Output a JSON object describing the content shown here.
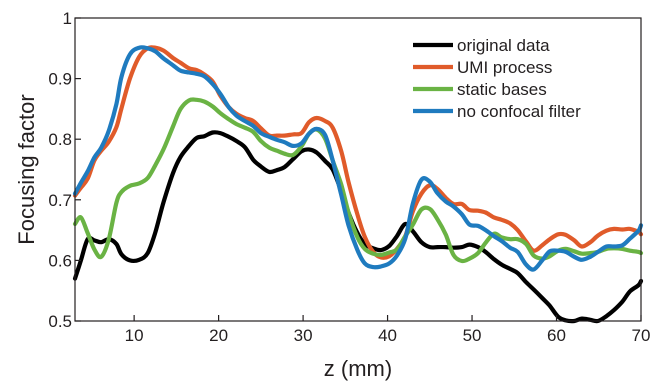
{
  "chart_data": {
    "type": "line",
    "title": "",
    "xlabel": "z (mm)",
    "ylabel": "Focusing factor",
    "xlim": [
      3,
      70
    ],
    "ylim": [
      0.5,
      1.0
    ],
    "xticks": [
      10,
      20,
      30,
      40,
      50,
      60,
      70
    ],
    "xtick_labels": [
      "10",
      "20",
      "30",
      "40",
      "50",
      "60",
      "70"
    ],
    "yticks": [
      0.5,
      0.6,
      0.7,
      0.8,
      0.9,
      1.0
    ],
    "ytick_labels": [
      "0.5",
      "0.6",
      "0.7",
      "0.8",
      "0.9",
      "1"
    ],
    "grid": false,
    "legend_position": "top-right",
    "series": [
      {
        "name": "original data",
        "color": "#000000",
        "x": [
          3,
          3.7,
          4.5,
          5.3,
          6.1,
          7,
          7.9,
          8.5,
          9.5,
          10.6,
          11.6,
          12.5,
          13.5,
          14.6,
          15.5,
          16.5,
          17.4,
          18.3,
          19.3,
          20.2,
          21.2,
          22.1,
          23.1,
          24.1,
          25,
          26,
          26.9,
          27.8,
          28.8,
          29.8,
          30.7,
          31.6,
          32.6,
          33.5,
          34.5,
          35.4,
          36.4,
          37.3,
          38.3,
          39.2,
          40.2,
          41.1,
          42.1,
          43,
          44,
          45,
          45.9,
          46.9,
          47.8,
          48.8,
          49.7,
          50.7,
          51.6,
          52.6,
          53.5,
          54.5,
          55.4,
          56.4,
          57.3,
          58.3,
          59.2,
          60.2,
          61.1,
          62.1,
          63,
          64,
          64.9,
          65.9,
          66.8,
          67.8,
          68.7,
          69.7,
          70
        ],
        "y": [
          0.57,
          0.6,
          0.635,
          0.633,
          0.63,
          0.635,
          0.627,
          0.61,
          0.6,
          0.601,
          0.612,
          0.646,
          0.697,
          0.744,
          0.771,
          0.789,
          0.802,
          0.805,
          0.811,
          0.81,
          0.804,
          0.797,
          0.787,
          0.766,
          0.755,
          0.746,
          0.749,
          0.754,
          0.767,
          0.78,
          0.783,
          0.778,
          0.764,
          0.75,
          0.715,
          0.678,
          0.646,
          0.627,
          0.62,
          0.617,
          0.624,
          0.64,
          0.66,
          0.648,
          0.63,
          0.622,
          0.622,
          0.622,
          0.621,
          0.622,
          0.626,
          0.622,
          0.614,
          0.602,
          0.593,
          0.586,
          0.579,
          0.564,
          0.552,
          0.538,
          0.525,
          0.507,
          0.501,
          0.5,
          0.504,
          0.502,
          0.5,
          0.508,
          0.518,
          0.532,
          0.549,
          0.559,
          0.566
        ]
      },
      {
        "name": "UMI process",
        "color": "#e05b2a",
        "x": [
          3,
          3.7,
          4.5,
          5.3,
          6.1,
          7,
          7.9,
          8.5,
          9.5,
          10.6,
          11.6,
          12.5,
          13.5,
          14.6,
          15.5,
          16.5,
          17.4,
          18.3,
          19.3,
          20.2,
          21.2,
          22.1,
          23.1,
          24.1,
          25,
          26,
          26.9,
          27.8,
          28.8,
          29.8,
          30.7,
          31.6,
          32.6,
          33.5,
          34.5,
          35.4,
          36.4,
          37.3,
          38.3,
          39.2,
          40.2,
          41.1,
          42.1,
          43,
          44,
          45,
          45.9,
          46.9,
          47.8,
          48.8,
          49.7,
          50.7,
          51.6,
          52.6,
          53.5,
          54.5,
          55.4,
          56.4,
          57.3,
          58.3,
          59.2,
          60.2,
          61.1,
          62.1,
          63,
          64,
          64.9,
          65.9,
          66.8,
          67.8,
          68.7,
          69.7,
          70
        ],
        "y": [
          0.707,
          0.72,
          0.735,
          0.765,
          0.781,
          0.796,
          0.82,
          0.851,
          0.9,
          0.936,
          0.95,
          0.951,
          0.946,
          0.934,
          0.926,
          0.917,
          0.914,
          0.907,
          0.895,
          0.872,
          0.853,
          0.842,
          0.835,
          0.83,
          0.818,
          0.806,
          0.806,
          0.806,
          0.808,
          0.81,
          0.828,
          0.835,
          0.83,
          0.819,
          0.781,
          0.728,
          0.677,
          0.639,
          0.614,
          0.605,
          0.607,
          0.619,
          0.64,
          0.681,
          0.71,
          0.724,
          0.718,
          0.703,
          0.693,
          0.693,
          0.683,
          0.682,
          0.679,
          0.671,
          0.667,
          0.661,
          0.65,
          0.631,
          0.616,
          0.625,
          0.635,
          0.643,
          0.642,
          0.633,
          0.623,
          0.63,
          0.641,
          0.649,
          0.652,
          0.651,
          0.652,
          0.647,
          0.643
        ]
      },
      {
        "name": "static bases",
        "color": "#6ab344",
        "x": [
          3,
          3.7,
          4.5,
          5.3,
          6.1,
          7,
          7.9,
          8.5,
          9.5,
          10.6,
          11.6,
          12.5,
          13.5,
          14.6,
          15.5,
          16.5,
          17.4,
          18.3,
          19.3,
          20.2,
          21.2,
          22.1,
          23.1,
          24.1,
          25,
          26,
          26.9,
          27.8,
          28.8,
          29.8,
          30.7,
          31.6,
          32.6,
          33.5,
          34.5,
          35.4,
          36.4,
          37.3,
          38.3,
          39.2,
          40.2,
          41.1,
          42.1,
          43,
          44,
          45,
          45.9,
          46.9,
          47.8,
          48.8,
          49.7,
          50.7,
          51.6,
          52.6,
          53.5,
          54.5,
          55.4,
          56.4,
          57.3,
          58.3,
          59.2,
          60.2,
          61.1,
          62.1,
          63,
          64,
          64.9,
          65.9,
          66.8,
          67.8,
          68.7,
          69.7,
          70
        ],
        "y": [
          0.66,
          0.671,
          0.645,
          0.618,
          0.606,
          0.635,
          0.695,
          0.713,
          0.723,
          0.727,
          0.736,
          0.757,
          0.784,
          0.821,
          0.85,
          0.864,
          0.865,
          0.862,
          0.854,
          0.843,
          0.833,
          0.825,
          0.819,
          0.812,
          0.797,
          0.786,
          0.781,
          0.776,
          0.774,
          0.788,
          0.809,
          0.816,
          0.801,
          0.765,
          0.726,
          0.678,
          0.639,
          0.619,
          0.611,
          0.609,
          0.613,
          0.618,
          0.64,
          0.659,
          0.684,
          0.685,
          0.668,
          0.642,
          0.609,
          0.599,
          0.603,
          0.612,
          0.629,
          0.644,
          0.638,
          0.635,
          0.635,
          0.627,
          0.608,
          0.603,
          0.607,
          0.616,
          0.619,
          0.615,
          0.611,
          0.612,
          0.614,
          0.619,
          0.62,
          0.619,
          0.616,
          0.614,
          0.612
        ]
      },
      {
        "name": "no confocal filter",
        "color": "#1f7bbf",
        "x": [
          3,
          3.7,
          4.5,
          5.3,
          6.1,
          7,
          7.9,
          8.5,
          9.5,
          10.6,
          11.6,
          12.5,
          13.5,
          14.6,
          15.5,
          16.5,
          17.4,
          18.3,
          19.3,
          20.2,
          21.2,
          22.1,
          23.1,
          24.1,
          25,
          26,
          26.9,
          27.8,
          28.8,
          29.8,
          30.7,
          31.6,
          32.6,
          33.5,
          34.5,
          35.4,
          36.4,
          37.3,
          38.3,
          39.2,
          40.2,
          41.1,
          42.1,
          43,
          44,
          45,
          45.9,
          46.9,
          47.8,
          48.8,
          49.7,
          50.7,
          51.6,
          52.6,
          53.5,
          54.5,
          55.4,
          56.4,
          57.3,
          58.3,
          59.2,
          60.2,
          61.1,
          62.1,
          63,
          64,
          64.9,
          65.9,
          66.8,
          67.8,
          68.7,
          69.7,
          70
        ],
        "y": [
          0.71,
          0.728,
          0.747,
          0.77,
          0.786,
          0.814,
          0.858,
          0.903,
          0.94,
          0.951,
          0.95,
          0.945,
          0.933,
          0.922,
          0.913,
          0.91,
          0.908,
          0.904,
          0.891,
          0.875,
          0.853,
          0.839,
          0.83,
          0.822,
          0.81,
          0.804,
          0.799,
          0.795,
          0.789,
          0.793,
          0.809,
          0.817,
          0.807,
          0.765,
          0.709,
          0.657,
          0.618,
          0.595,
          0.589,
          0.59,
          0.595,
          0.608,
          0.636,
          0.694,
          0.733,
          0.73,
          0.711,
          0.697,
          0.689,
          0.676,
          0.659,
          0.657,
          0.65,
          0.64,
          0.632,
          0.621,
          0.614,
          0.593,
          0.585,
          0.6,
          0.615,
          0.616,
          0.614,
          0.606,
          0.601,
          0.606,
          0.614,
          0.623,
          0.623,
          0.625,
          0.636,
          0.649,
          0.658
        ]
      }
    ]
  }
}
